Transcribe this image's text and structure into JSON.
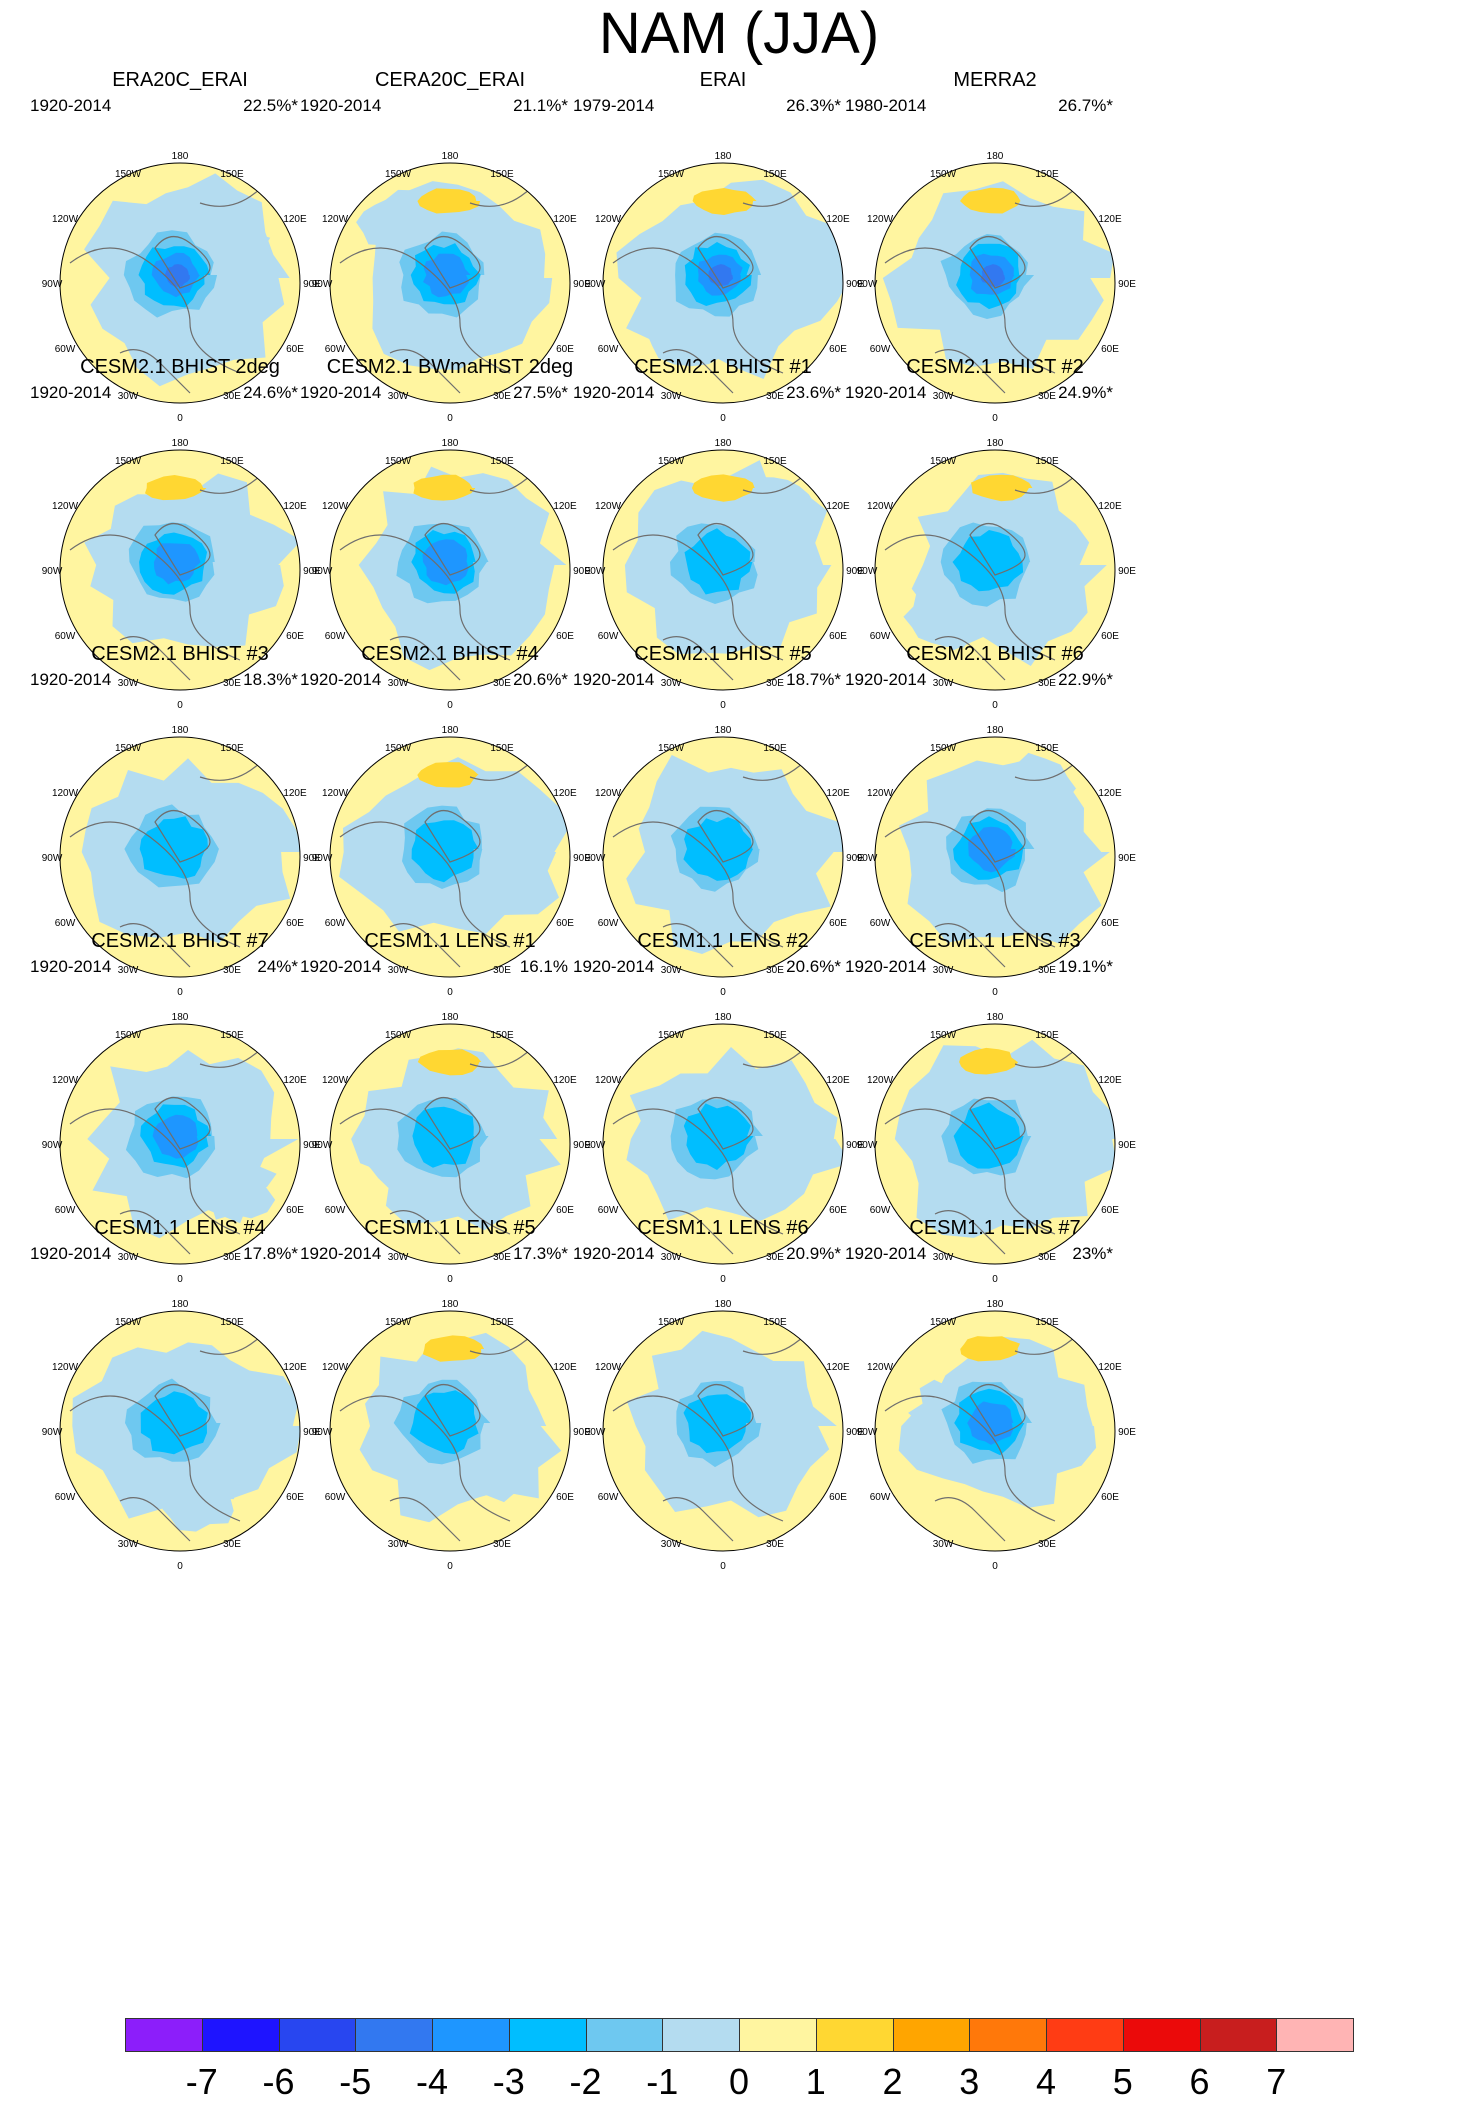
{
  "title": "NAM (JJA)",
  "colors": {
    "land_outline": "#6e6e6e",
    "plot_border": "#000000",
    "negative_1": "#b4dcf0",
    "negative_2": "#6ec8f0",
    "negative_3": "#00beff",
    "negative_4": "#1e96ff",
    "negative_5": "#3278f0",
    "positive_1": "#fff5a0",
    "positive_2": "#ffd732"
  },
  "longitude_labels": [
    "180",
    "150W",
    "150E",
    "120W",
    "120E",
    "90W",
    "90E",
    "60W",
    "60E",
    "30W",
    "30E",
    "0"
  ],
  "chart_data": {
    "type": "heatmap",
    "title": "NAM (JJA)",
    "projection": "north polar stereographic",
    "variable": "JJA Northern Annular Mode pattern (regression map)",
    "contour_levels": [
      -7,
      -6,
      -5,
      -4,
      -3,
      -2,
      -1,
      0,
      1,
      2,
      3,
      4,
      5,
      6,
      7
    ],
    "panels": [
      {
        "title": "ERA20C_ERAI",
        "years": "1920-2014",
        "variance": "22.5%*",
        "min_level": -5,
        "max_level": 1
      },
      {
        "title": "CERA20C_ERAI",
        "years": "1920-2014",
        "variance": "21.1%*",
        "min_level": -4,
        "max_level": 2
      },
      {
        "title": "ERAI",
        "years": "1979-2014",
        "variance": "26.3%*",
        "min_level": -5,
        "max_level": 2
      },
      {
        "title": "MERRA2",
        "years": "1980-2014",
        "variance": "26.7%*",
        "min_level": -5,
        "max_level": 2
      },
      {
        "title": "CESM2.1 BHIST 2deg",
        "years": "1920-2014",
        "variance": "24.6%*",
        "min_level": -4,
        "max_level": 2
      },
      {
        "title": "CESM2.1 BWmaHIST 2deg",
        "years": "1920-2014",
        "variance": "27.5%*",
        "min_level": -4,
        "max_level": 2
      },
      {
        "title": "CESM2.1 BHIST #1",
        "years": "1920-2014",
        "variance": "23.6%*",
        "min_level": -3,
        "max_level": 2
      },
      {
        "title": "CESM2.1 BHIST #2",
        "years": "1920-2014",
        "variance": "24.9%*",
        "min_level": -3,
        "max_level": 2
      },
      {
        "title": "CESM2.1 BHIST #3",
        "years": "1920-2014",
        "variance": "18.3%*",
        "min_level": -3,
        "max_level": 1
      },
      {
        "title": "CESM2.1 BHIST #4",
        "years": "1920-2014",
        "variance": "20.6%*",
        "min_level": -3,
        "max_level": 2
      },
      {
        "title": "CESM2.1 BHIST #5",
        "years": "1920-2014",
        "variance": "18.7%*",
        "min_level": -3,
        "max_level": 1
      },
      {
        "title": "CESM2.1 BHIST #6",
        "years": "1920-2014",
        "variance": "22.9%*",
        "min_level": -4,
        "max_level": 1
      },
      {
        "title": "CESM2.1 BHIST #7",
        "years": "1920-2014",
        "variance": "24%*",
        "min_level": -4,
        "max_level": 1
      },
      {
        "title": "CESM1.1 LENS #1",
        "years": "1920-2014",
        "variance": "16.1%",
        "min_level": -3,
        "max_level": 2
      },
      {
        "title": "CESM1.1 LENS #2",
        "years": "1920-2014",
        "variance": "20.6%*",
        "min_level": -3,
        "max_level": 1
      },
      {
        "title": "CESM1.1 LENS #3",
        "years": "1920-2014",
        "variance": "19.1%*",
        "min_level": -3,
        "max_level": 2
      },
      {
        "title": "CESM1.1 LENS #4",
        "years": "1920-2014",
        "variance": "17.8%*",
        "min_level": -3,
        "max_level": 1
      },
      {
        "title": "CESM1.1 LENS #5",
        "years": "1920-2014",
        "variance": "17.3%*",
        "min_level": -3,
        "max_level": 2
      },
      {
        "title": "CESM1.1 LENS #6",
        "years": "1920-2014",
        "variance": "20.9%*",
        "min_level": -3,
        "max_level": 1
      },
      {
        "title": "CESM1.1 LENS #7",
        "years": "1920-2014",
        "variance": "23%*",
        "min_level": -4,
        "max_level": 2
      }
    ],
    "colorbar": {
      "labels": [
        "-7",
        "-6",
        "-5",
        "-4",
        "-3",
        "-2",
        "-1",
        "0",
        "1",
        "2",
        "3",
        "4",
        "5",
        "6",
        "7"
      ],
      "colors": [
        "#8c1efa",
        "#1e14ff",
        "#2846f0",
        "#3278f0",
        "#1e96ff",
        "#00beff",
        "#6ec8f0",
        "#b4dcf0",
        "#fff5a0",
        "#ffd732",
        "#ffa500",
        "#ff780a",
        "#ff3c14",
        "#eb0a0a",
        "#c81e1e",
        "#ffb4b4"
      ]
    }
  }
}
